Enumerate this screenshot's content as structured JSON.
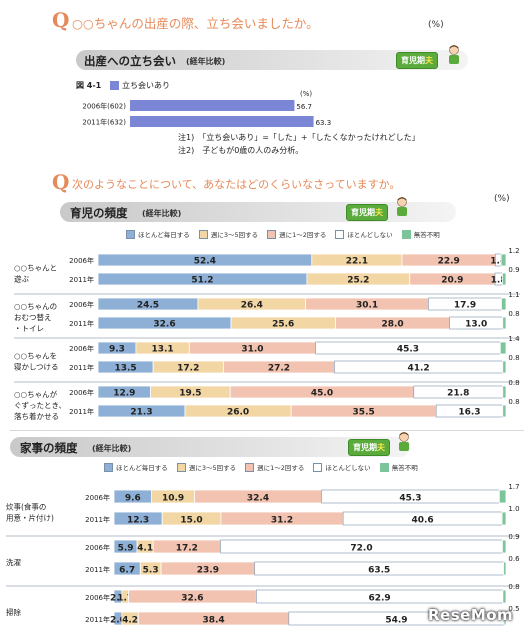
{
  "q1": {
    "mark": "Q",
    "text": "○○ちゃんの出産の際、立ち会いましたか。",
    "pct": "(%)",
    "banner_title": "出産への立ち会い",
    "banner_sub": "(経年比較)",
    "badge": {
      "a": "育児期",
      "b": "夫"
    },
    "fig_label": "図 4-1",
    "legend": "立ち会いあり",
    "unit": "(%)",
    "notes": [
      "注1)　「立ち会いあり」=「した」+「したくなかったけれどした」",
      "注2)　子どもが0歳の人のみ分析。"
    ]
  },
  "q2": {
    "mark": "Q",
    "text": "次のようなことについて、あなたはどのくらいなさっていますか。",
    "pct": "(%)"
  },
  "s1": {
    "banner_title": "育児の頻度",
    "banner_sub": "(経年比較)",
    "badge": {
      "a": "育児期",
      "b": "夫"
    }
  },
  "s2": {
    "banner_title": "家事の頻度",
    "banner_sub": "(経年比較)",
    "badge": {
      "a": "育児期",
      "b": "夫"
    }
  },
  "legend": [
    "ほとんど毎日する",
    "週に3～5回する",
    "週に1～2回する",
    "ほとんどしない",
    "無答不明"
  ],
  "watermark": "ReseMom",
  "colors": {
    "every_day": "#8fb0d6",
    "three_five": "#f2d6a4",
    "one_two": "#f2c3b0",
    "rarely": "#ffffff",
    "no_answer": "#7cc59a",
    "fig41_bar": "#7b86d6",
    "accent": "#e58a5a",
    "badge": "#5aaa3c"
  },
  "chart_data": [
    {
      "type": "bar",
      "title": "出産への立ち会い",
      "subtitle": "(経年比較)",
      "categories": [
        "2006年(602)",
        "2011年(632)"
      ],
      "series": [
        {
          "name": "立ち会いあり",
          "values": [
            56.7,
            63.3
          ]
        }
      ],
      "xlim": [
        0,
        100
      ]
    },
    {
      "type": "bar",
      "stacked": true,
      "title": "育児の頻度",
      "subtitle": "(経年比較)",
      "groups": [
        {
          "label": [
            "○○ちゃんと",
            "遊ぶ"
          ],
          "rows": [
            {
              "year": "2006年",
              "values": [
                52.4,
                22.1,
                22.9,
                1.4,
                1.2
              ]
            },
            {
              "year": "2011年",
              "values": [
                51.2,
                25.2,
                20.9,
                1.8,
                0.9
              ]
            }
          ]
        },
        {
          "label": [
            "○○ちゃんの",
            "おむつ替え",
            "・トイレ"
          ],
          "rows": [
            {
              "year": "2006年",
              "values": [
                24.5,
                26.4,
                30.1,
                17.9,
                1.1
              ]
            },
            {
              "year": "2011年",
              "values": [
                32.6,
                25.6,
                28.0,
                13.0,
                0.8
              ]
            }
          ]
        },
        {
          "label": [
            "○○ちゃんを",
            "寝かしつける"
          ],
          "rows": [
            {
              "year": "2006年",
              "values": [
                9.3,
                13.1,
                31.0,
                45.3,
                1.4
              ]
            },
            {
              "year": "2011年",
              "values": [
                13.5,
                17.2,
                27.2,
                41.2,
                0.8
              ]
            }
          ]
        },
        {
          "label": [
            "○○ちゃんが",
            "ぐずったとき、",
            "落ち着かせる"
          ],
          "rows": [
            {
              "year": "2006年",
              "values": [
                12.9,
                19.5,
                45.0,
                21.8,
                0.8
              ]
            },
            {
              "year": "2011年",
              "values": [
                21.3,
                26.0,
                35.5,
                16.3,
                0.8
              ]
            }
          ]
        }
      ]
    },
    {
      "type": "bar",
      "stacked": true,
      "title": "家事の頻度",
      "subtitle": "(経年比較)",
      "groups": [
        {
          "label": [
            "炊事(食事の",
            "用意・片付け)"
          ],
          "rows": [
            {
              "year": "2006年",
              "values": [
                9.6,
                10.9,
                32.4,
                45.3,
                1.7
              ]
            },
            {
              "year": "2011年",
              "values": [
                12.3,
                15.0,
                31.2,
                40.6,
                1.0
              ]
            }
          ]
        },
        {
          "label": [
            "洗濯"
          ],
          "rows": [
            {
              "year": "2006年",
              "values": [
                5.9,
                4.1,
                17.2,
                72.0,
                0.9
              ]
            },
            {
              "year": "2011年",
              "values": [
                6.7,
                5.3,
                23.9,
                63.5,
                0.6
              ]
            }
          ]
        },
        {
          "label": [
            "掃除"
          ],
          "rows": [
            {
              "year": "2006年",
              "values": [
                2.0,
                1.7,
                32.6,
                62.9,
                0.8
              ]
            },
            {
              "year": "2011年",
              "values": [
                2.0,
                4.2,
                38.4,
                54.9,
                0.5
              ]
            }
          ]
        }
      ]
    }
  ]
}
